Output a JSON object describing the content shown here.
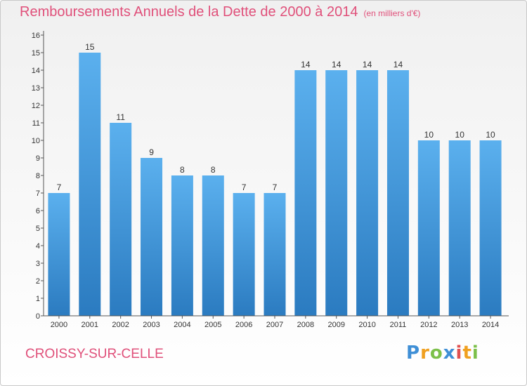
{
  "header": {
    "title": "Remboursements Annuels de la Dette de 2000 à 2014",
    "subtitle": "(en milliers d'€)"
  },
  "footer": {
    "commune": "CROISSY-SUR-CELLE",
    "logo_text": "Proxiti"
  },
  "colors": {
    "title": "#e0507a",
    "bar_top": "#5bb0ee",
    "bar_bottom": "#2b7bc0"
  },
  "chart_data": {
    "type": "bar",
    "title": "Remboursements Annuels de la Dette de 2000 à 2014",
    "categories": [
      "2000",
      "2001",
      "2002",
      "2003",
      "2004",
      "2005",
      "2006",
      "2007",
      "2008",
      "2009",
      "2010",
      "2011",
      "2012",
      "2013",
      "2014"
    ],
    "values": [
      7,
      15,
      11,
      9,
      8,
      8,
      7,
      7,
      14,
      14,
      14,
      14,
      10,
      10,
      10
    ],
    "ylim": [
      0,
      16
    ],
    "yticks": [
      0,
      1,
      2,
      3,
      4,
      5,
      6,
      7,
      8,
      9,
      10,
      11,
      12,
      13,
      14,
      15,
      16
    ],
    "grid": false,
    "data_labels": true
  }
}
